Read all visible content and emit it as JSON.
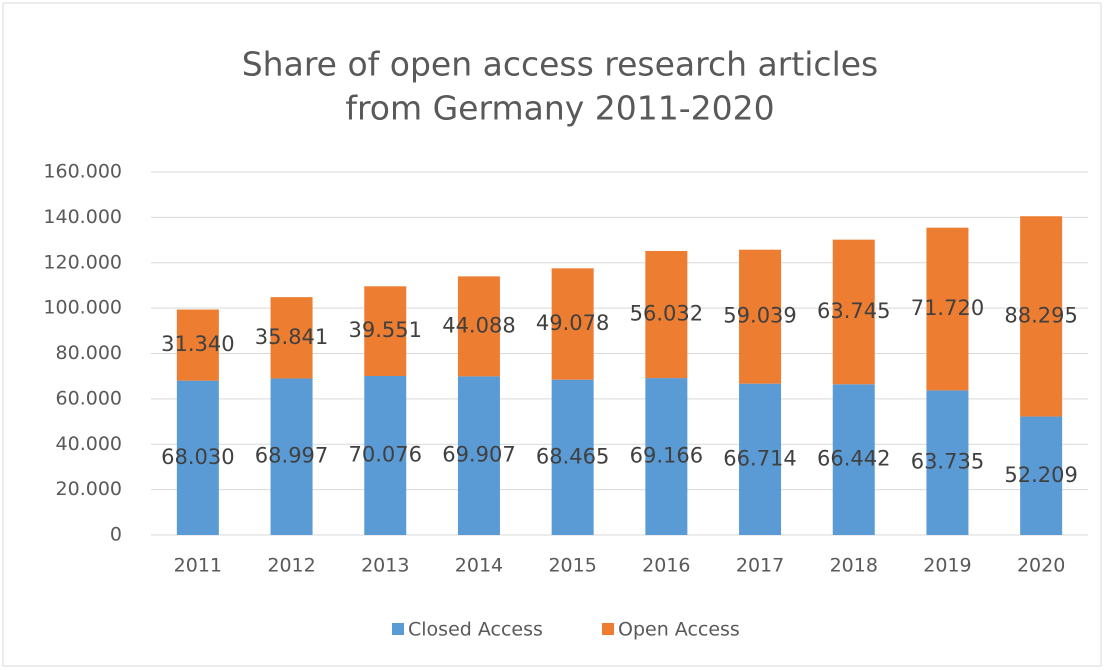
{
  "chart_data": {
    "type": "stacked_bar",
    "title": [
      "Share of open access research articles",
      "from Germany 2011-2020"
    ],
    "categories": [
      "2011",
      "2012",
      "2013",
      "2014",
      "2015",
      "2016",
      "2017",
      "2018",
      "2019",
      "2020"
    ],
    "series": [
      {
        "name": "Closed Access",
        "color": "#5b9bd5",
        "values": [
          68030,
          68997,
          70076,
          69907,
          68465,
          69166,
          66714,
          66442,
          63735,
          52209
        ],
        "value_labels": [
          "68.030",
          "68.997",
          "70.076",
          "69.907",
          "68.465",
          "69.166",
          "66.714",
          "66.442",
          "63.735",
          "52.209"
        ]
      },
      {
        "name": "Open Access",
        "color": "#ed7d31",
        "values": [
          31340,
          35841,
          39551,
          44088,
          49078,
          56032,
          59039,
          63745,
          71720,
          88295
        ],
        "value_labels": [
          "31.340",
          "35.841",
          "39.551",
          "44.088",
          "49.078",
          "56.032",
          "59.039",
          "63.745",
          "71.720",
          "88.295"
        ]
      }
    ],
    "ylim": [
      0,
      160000
    ],
    "yticks": [
      0,
      {
        "value": 20000,
        "label": "20.000"
      },
      {
        "value": 40000,
        "label": "40.000"
      },
      {
        "value": 60000,
        "label": "60.000"
      },
      {
        "value": 80000,
        "label": "80.000"
      },
      {
        "value": 100000,
        "label": "100.000"
      },
      {
        "value": 120000,
        "label": "120.000"
      },
      {
        "value": 140000,
        "label": "140.000"
      },
      {
        "value": 160000,
        "label": "160.000"
      }
    ],
    "grid": true,
    "legend": "bottom"
  }
}
